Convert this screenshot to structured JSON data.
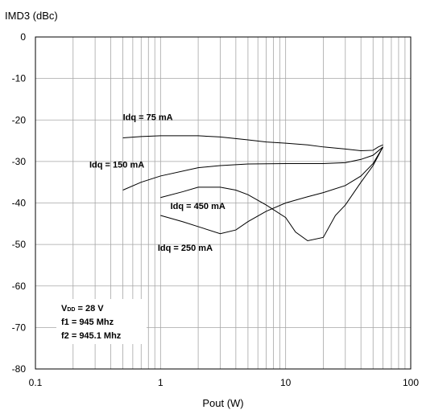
{
  "chart_data": {
    "type": "line",
    "xlabel": "Pout (W)",
    "ylabel": "IMD3 (dBc)",
    "x_scale": "log",
    "xlim": [
      0.1,
      100
    ],
    "ylim": [
      -80,
      0
    ],
    "grid": true,
    "x_tick_labels": [
      "0.1",
      "1",
      "10",
      "100"
    ],
    "y_tick_labels": [
      "0",
      "-10",
      "-20",
      "-30",
      "-40",
      "-50",
      "-60",
      "-70",
      "-80"
    ],
    "series": [
      {
        "name": "Idq = 75 mA",
        "points": [
          [
            0.5,
            -24.3
          ],
          [
            0.7,
            -24.0
          ],
          [
            1,
            -23.8
          ],
          [
            2,
            -23.8
          ],
          [
            3,
            -24.1
          ],
          [
            5,
            -24.8
          ],
          [
            7,
            -25.3
          ],
          [
            10,
            -25.6
          ],
          [
            15,
            -26.0
          ],
          [
            20,
            -26.5
          ],
          [
            30,
            -27.0
          ],
          [
            40,
            -27.4
          ],
          [
            50,
            -27.3
          ],
          [
            55,
            -26.5
          ],
          [
            60,
            -26.0
          ]
        ]
      },
      {
        "name": "Idq = 150 mA",
        "points": [
          [
            0.5,
            -36.9
          ],
          [
            0.7,
            -35.0
          ],
          [
            1,
            -33.5
          ],
          [
            2,
            -31.5
          ],
          [
            3,
            -31.0
          ],
          [
            5,
            -30.6
          ],
          [
            10,
            -30.5
          ],
          [
            20,
            -30.5
          ],
          [
            30,
            -30.3
          ],
          [
            40,
            -29.5
          ],
          [
            50,
            -28.5
          ],
          [
            60,
            -26.5
          ]
        ]
      },
      {
        "name": "Idq = 450 mA",
        "points": [
          [
            1,
            -38.7
          ],
          [
            1.5,
            -37.3
          ],
          [
            2,
            -36.2
          ],
          [
            3,
            -36.2
          ],
          [
            4,
            -36.9
          ],
          [
            5,
            -38.0
          ],
          [
            7,
            -40.5
          ],
          [
            10,
            -43.5
          ],
          [
            12,
            -47.0
          ],
          [
            15,
            -49.1
          ],
          [
            20,
            -48.3
          ],
          [
            25,
            -43.0
          ],
          [
            30,
            -40.5
          ],
          [
            40,
            -35.0
          ],
          [
            50,
            -31.0
          ],
          [
            60,
            -26.5
          ]
        ]
      },
      {
        "name": "Idq = 250 mA",
        "points": [
          [
            1,
            -43.0
          ],
          [
            1.5,
            -44.5
          ],
          [
            2,
            -45.7
          ],
          [
            3,
            -47.4
          ],
          [
            4,
            -46.5
          ],
          [
            5,
            -44.5
          ],
          [
            7,
            -42.0
          ],
          [
            10,
            -40.0
          ],
          [
            15,
            -38.5
          ],
          [
            20,
            -37.5
          ],
          [
            30,
            -35.8
          ],
          [
            40,
            -33.5
          ],
          [
            50,
            -30.5
          ],
          [
            60,
            -26.5
          ]
        ]
      }
    ],
    "annotations": [
      {
        "text": "Idq = 75 mA",
        "x": 0.5,
        "y": -20
      },
      {
        "text": "Idq = 150 mA",
        "x": 0.27,
        "y": -31.5
      },
      {
        "text": "Idq = 450 mA",
        "x": 1.2,
        "y": -41.5
      },
      {
        "text": "Idq = 250 mA",
        "x": 0.95,
        "y": -51.5
      }
    ],
    "conditions": {
      "vdd_prefix": "V",
      "vdd_sub": "DD",
      "vdd_value": " = 28 V",
      "f1": "f1 = 945 Mhz",
      "f2": "f2 = 945.1 Mhz"
    }
  }
}
